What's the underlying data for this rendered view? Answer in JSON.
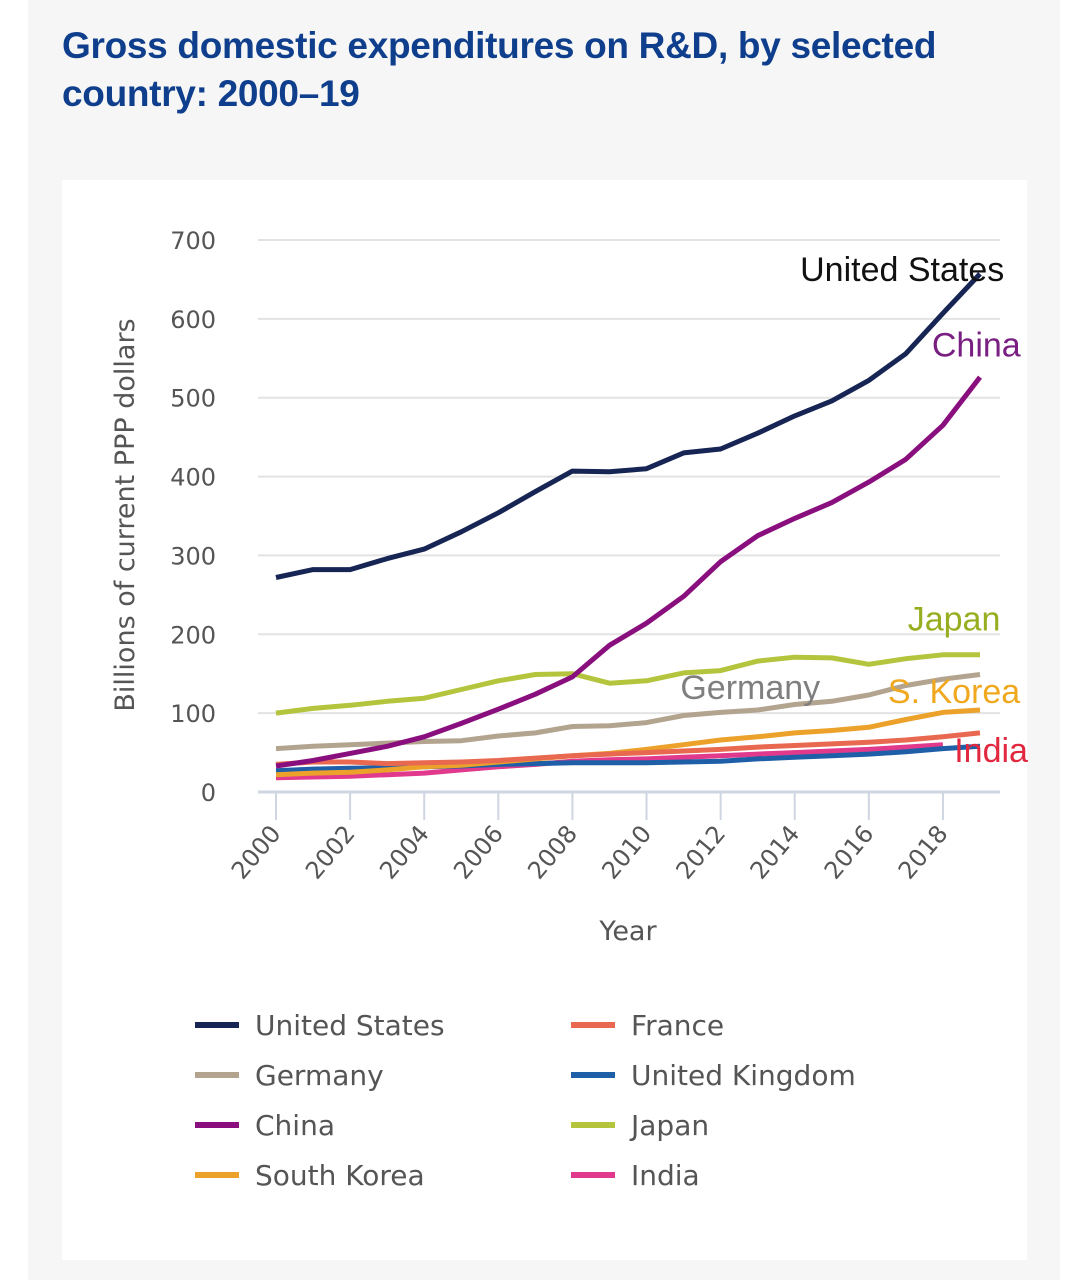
{
  "title": "Gross domestic expenditures on R&D, by selected country: 2000–19",
  "chart_data": {
    "type": "line",
    "title": "Gross domestic expenditures on R&D, by selected country: 2000–19",
    "xlabel": "Year",
    "ylabel": "Billions of current PPP dollars",
    "x": [
      2000,
      2001,
      2002,
      2003,
      2004,
      2005,
      2006,
      2007,
      2008,
      2009,
      2010,
      2011,
      2012,
      2013,
      2014,
      2015,
      2016,
      2017,
      2018,
      2019
    ],
    "xticks": [
      "2000",
      "2002",
      "2004",
      "2006",
      "2008",
      "2010",
      "2012",
      "2014",
      "2016",
      "2018"
    ],
    "yticks": [
      "0",
      "100",
      "200",
      "300",
      "400",
      "500",
      "600",
      "700"
    ],
    "ylim": [
      0,
      700
    ],
    "xlim": [
      2000,
      2019
    ],
    "grid": true,
    "legend_position": "bottom",
    "series": [
      {
        "name": "United States",
        "color": "#172554",
        "values": [
          272,
          282,
          282,
          296,
          308,
          330,
          354,
          381,
          407,
          406,
          410,
          430,
          435,
          455,
          477,
          496,
          522,
          556,
          607,
          657
        ]
      },
      {
        "name": "Germany",
        "color": "#b3a48f",
        "values": [
          55,
          58,
          60,
          62,
          64,
          65,
          71,
          75,
          83,
          84,
          88,
          97,
          101,
          104,
          111,
          115,
          123,
          135,
          143,
          149
        ]
      },
      {
        "name": "China",
        "color": "#8a0f7e",
        "values": [
          33,
          40,
          49,
          58,
          70,
          87,
          105,
          124,
          146,
          186,
          214,
          248,
          292,
          325,
          347,
          367,
          393,
          422,
          465,
          526
        ]
      },
      {
        "name": "South Korea",
        "color": "#eba12a",
        "values": [
          22,
          24,
          25,
          28,
          32,
          34,
          38,
          42,
          46,
          49,
          54,
          60,
          66,
          70,
          75,
          78,
          82,
          92,
          101,
          104
        ]
      },
      {
        "name": "France",
        "color": "#e8694f",
        "values": [
          35,
          38,
          38,
          36,
          37,
          38,
          40,
          43,
          46,
          48,
          50,
          52,
          54,
          57,
          59,
          61,
          63,
          66,
          70,
          75
        ]
      },
      {
        "name": "United Kingdom",
        "color": "#1f5fa8",
        "values": [
          27,
          29,
          30,
          31,
          32,
          33,
          35,
          36,
          37,
          37,
          37,
          38,
          39,
          42,
          44,
          46,
          48,
          51,
          55,
          58
        ]
      },
      {
        "name": "Japan",
        "color": "#b4c43c",
        "values": [
          100,
          106,
          110,
          115,
          119,
          130,
          141,
          149,
          150,
          138,
          141,
          151,
          154,
          166,
          171,
          170,
          162,
          169,
          174,
          174
        ]
      },
      {
        "name": "India",
        "color": "#e13a8c",
        "values": [
          18,
          19,
          20,
          22,
          24,
          28,
          32,
          35,
          39,
          41,
          42,
          44,
          46,
          48,
          50,
          52,
          54,
          57,
          60,
          null
        ]
      }
    ],
    "annotations": [
      {
        "text": "United States",
        "color": "#111111",
        "x": 2016.9,
        "y": 648
      },
      {
        "text": "China",
        "color": "#7a1f82",
        "x": 2018.9,
        "y": 552
      },
      {
        "text": "Japan",
        "color": "#98ad20",
        "x": 2018.3,
        "y": 205
      },
      {
        "text": "Germany",
        "color": "#7f7f7f",
        "x": 2012.8,
        "y": 118
      },
      {
        "text": "S. Korea",
        "color": "#f0a81e",
        "x": 2018.3,
        "y": 113
      },
      {
        "text": "India",
        "color": "#e2283f",
        "x": 2019.3,
        "y": 38
      }
    ]
  },
  "legend": [
    {
      "label": "United States",
      "color": "#172554"
    },
    {
      "label": "France",
      "color": "#e8694f"
    },
    {
      "label": "Germany",
      "color": "#b3a48f"
    },
    {
      "label": "United Kingdom",
      "color": "#1f5fa8"
    },
    {
      "label": "China",
      "color": "#8a0f7e"
    },
    {
      "label": "Japan",
      "color": "#b4c43c"
    },
    {
      "label": "South Korea",
      "color": "#eba12a"
    },
    {
      "label": "India",
      "color": "#e13a8c"
    }
  ]
}
